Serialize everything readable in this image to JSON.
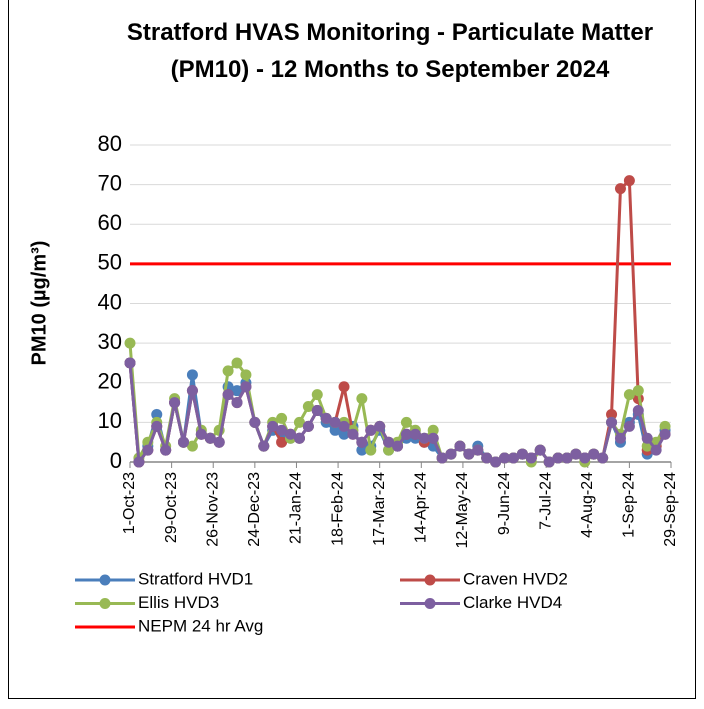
{
  "chart_data": {
    "type": "line",
    "title": "Stratford HVAS Monitoring - Particulate Matter (PM10) - 12 Months to September 2024",
    "y_label": "PM10 (µg/m³)",
    "x": [
      "2023-10-01",
      "2023-10-07",
      "2023-10-13",
      "2023-10-19",
      "2023-10-25",
      "2023-10-31",
      "2023-11-06",
      "2023-11-12",
      "2023-11-18",
      "2023-11-24",
      "2023-11-30",
      "2023-12-06",
      "2023-12-12",
      "2023-12-18",
      "2023-12-24",
      "2023-12-30",
      "2024-01-05",
      "2024-01-11",
      "2024-01-17",
      "2024-01-23",
      "2024-01-29",
      "2024-02-04",
      "2024-02-10",
      "2024-02-16",
      "2024-02-22",
      "2024-02-28",
      "2024-03-05",
      "2024-03-11",
      "2024-03-17",
      "2024-03-23",
      "2024-03-29",
      "2024-04-04",
      "2024-04-10",
      "2024-04-16",
      "2024-04-22",
      "2024-04-28",
      "2024-05-04",
      "2024-05-10",
      "2024-05-16",
      "2024-05-22",
      "2024-05-28",
      "2024-06-03",
      "2024-06-09",
      "2024-06-15",
      "2024-06-21",
      "2024-06-27",
      "2024-07-03",
      "2024-07-09",
      "2024-07-15",
      "2024-07-21",
      "2024-07-27",
      "2024-08-02",
      "2024-08-08",
      "2024-08-14",
      "2024-08-20",
      "2024-08-26",
      "2024-09-01",
      "2024-09-07",
      "2024-09-13",
      "2024-09-19",
      "2024-09-25"
    ],
    "xlim": [
      "2023-10-01",
      "2024-09-29"
    ],
    "xticks": [
      {
        "value": "2023-10-01",
        "label": "1-Oct-23"
      },
      {
        "value": "2023-10-29",
        "label": "29-Oct-23"
      },
      {
        "value": "2023-11-26",
        "label": "26-Nov-23"
      },
      {
        "value": "2023-12-24",
        "label": "24-Dec-23"
      },
      {
        "value": "2024-01-21",
        "label": "21-Jan-24"
      },
      {
        "value": "2024-02-18",
        "label": "18-Feb-24"
      },
      {
        "value": "2024-03-17",
        "label": "17-Mar-24"
      },
      {
        "value": "2024-04-14",
        "label": "14-Apr-24"
      },
      {
        "value": "2024-05-12",
        "label": "12-May-24"
      },
      {
        "value": "2024-06-09",
        "label": "9-Jun-24"
      },
      {
        "value": "2024-07-07",
        "label": "7-Jul-24"
      },
      {
        "value": "2024-08-04",
        "label": "4-Aug-24"
      },
      {
        "value": "2024-09-01",
        "label": "1-Sep-24"
      },
      {
        "value": "2024-09-29",
        "label": "29-Sep-24"
      }
    ],
    "ylim": [
      0,
      80
    ],
    "yticks": [
      0,
      10,
      20,
      30,
      40,
      50,
      60,
      70,
      80
    ],
    "grid": true,
    "series": [
      {
        "name": "Stratford HVD1",
        "color": "#4a7ebb",
        "values": [
          25,
          0,
          4,
          12,
          3,
          15,
          5,
          22,
          7,
          6,
          5,
          19,
          18,
          20,
          10,
          4,
          8,
          7,
          6,
          6,
          9,
          13,
          10,
          8,
          7,
          9,
          3,
          4,
          8,
          3,
          4,
          6,
          6,
          5,
          4,
          1,
          2,
          4,
          2,
          4,
          1,
          0,
          1,
          1,
          2,
          1,
          3,
          0,
          1,
          1,
          2,
          1,
          2,
          1,
          10,
          5,
          10,
          12,
          2,
          4,
          8
        ]
      },
      {
        "name": "Craven HVD2",
        "color": "#be4b48",
        "values": [
          25,
          0,
          3,
          9,
          3,
          15,
          5,
          18,
          7,
          6,
          5,
          17,
          15,
          19,
          10,
          4,
          9,
          5,
          7,
          6,
          9,
          13,
          11,
          10,
          19,
          7,
          5,
          8,
          9,
          5,
          4,
          7,
          7,
          5,
          6,
          1,
          2,
          4,
          2,
          3,
          1,
          0,
          1,
          1,
          2,
          1,
          3,
          0,
          1,
          1,
          2,
          1,
          2,
          1,
          12,
          69,
          71,
          16,
          3,
          4,
          7
        ]
      },
      {
        "name": "Ellis HVD3",
        "color": "#98b954",
        "values": [
          30,
          1,
          5,
          10,
          4,
          16,
          5,
          4,
          8,
          6,
          8,
          23,
          25,
          22,
          10,
          4,
          10,
          11,
          6,
          10,
          14,
          17,
          11,
          10,
          10,
          8,
          16,
          3,
          9,
          3,
          5,
          10,
          8,
          6,
          8,
          1,
          2,
          4,
          2,
          3,
          1,
          0,
          1,
          1,
          2,
          0,
          3,
          0,
          1,
          1,
          2,
          0,
          2,
          1,
          10,
          7,
          17,
          18,
          4,
          5,
          9
        ]
      },
      {
        "name": "Clarke HVD4",
        "color": "#7d5fa0",
        "values": [
          25,
          0,
          3,
          9,
          3,
          15,
          5,
          18,
          7,
          6,
          5,
          17,
          15,
          19,
          10,
          4,
          9,
          8,
          7,
          6,
          9,
          13,
          11,
          10,
          9,
          7,
          5,
          8,
          9,
          5,
          4,
          7,
          7,
          6,
          6,
          1,
          2,
          4,
          2,
          3,
          1,
          0,
          1,
          1,
          2,
          1,
          3,
          0,
          1,
          1,
          2,
          1,
          2,
          1,
          10,
          6,
          9,
          13,
          6,
          3,
          7
        ]
      }
    ],
    "reference_line": {
      "name": "NEPM 24 hr Avg",
      "value": 50,
      "color": "#ff0000"
    }
  }
}
